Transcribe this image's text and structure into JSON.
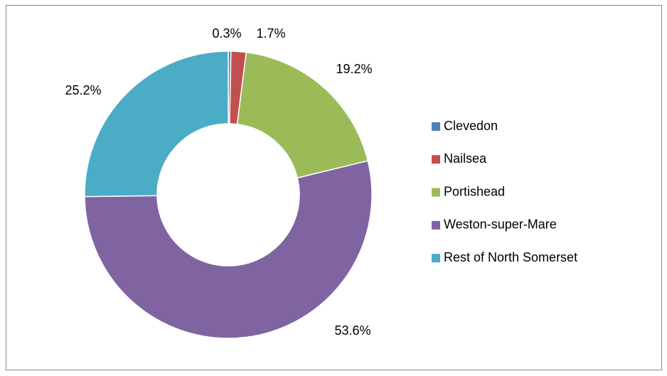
{
  "chart_data": {
    "type": "donut",
    "categories": [
      "Clevedon",
      "Nailsea",
      "Portishead",
      "Weston-super-Mare",
      "Rest of North Somerset"
    ],
    "values": [
      0.3,
      1.7,
      19.2,
      53.6,
      25.2
    ],
    "value_labels": [
      "0.3%",
      "1.7%",
      "19.2%",
      "53.6%",
      "25.2%"
    ],
    "colors": [
      "#4f81bd",
      "#c0504d",
      "#9bbb59",
      "#8064a2",
      "#4bacc6"
    ],
    "legend": "right"
  }
}
